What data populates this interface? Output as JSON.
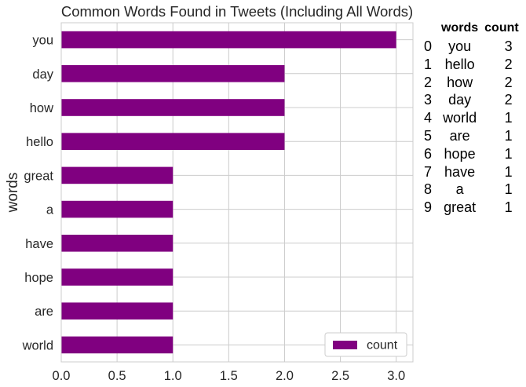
{
  "chart_data": {
    "type": "bar",
    "orientation": "horizontal",
    "title": "Common Words Found in Tweets (Including All Words)",
    "ylabel": "words",
    "xlabel": "",
    "categories": [
      "world",
      "are",
      "hope",
      "have",
      "a",
      "great",
      "hello",
      "how",
      "day",
      "you"
    ],
    "series": [
      {
        "name": "count",
        "values": [
          1,
          1,
          1,
          1,
          1,
          1,
          2,
          2,
          2,
          3
        ],
        "color": "#800080"
      }
    ],
    "xlim": [
      0,
      3.15
    ],
    "xticks": [
      "0.0",
      "0.5",
      "1.0",
      "1.5",
      "2.0",
      "2.5",
      "3.0"
    ],
    "grid": true,
    "legend": "lower-right"
  },
  "table": {
    "headers": [
      "",
      "words",
      "count"
    ],
    "rows": [
      [
        "0",
        "you",
        "3"
      ],
      [
        "1",
        "hello",
        "2"
      ],
      [
        "2",
        "how",
        "2"
      ],
      [
        "3",
        "day",
        "2"
      ],
      [
        "4",
        "world",
        "1"
      ],
      [
        "5",
        "are",
        "1"
      ],
      [
        "6",
        "hope",
        "1"
      ],
      [
        "7",
        "have",
        "1"
      ],
      [
        "8",
        "a",
        "1"
      ],
      [
        "9",
        "great",
        "1"
      ]
    ]
  }
}
